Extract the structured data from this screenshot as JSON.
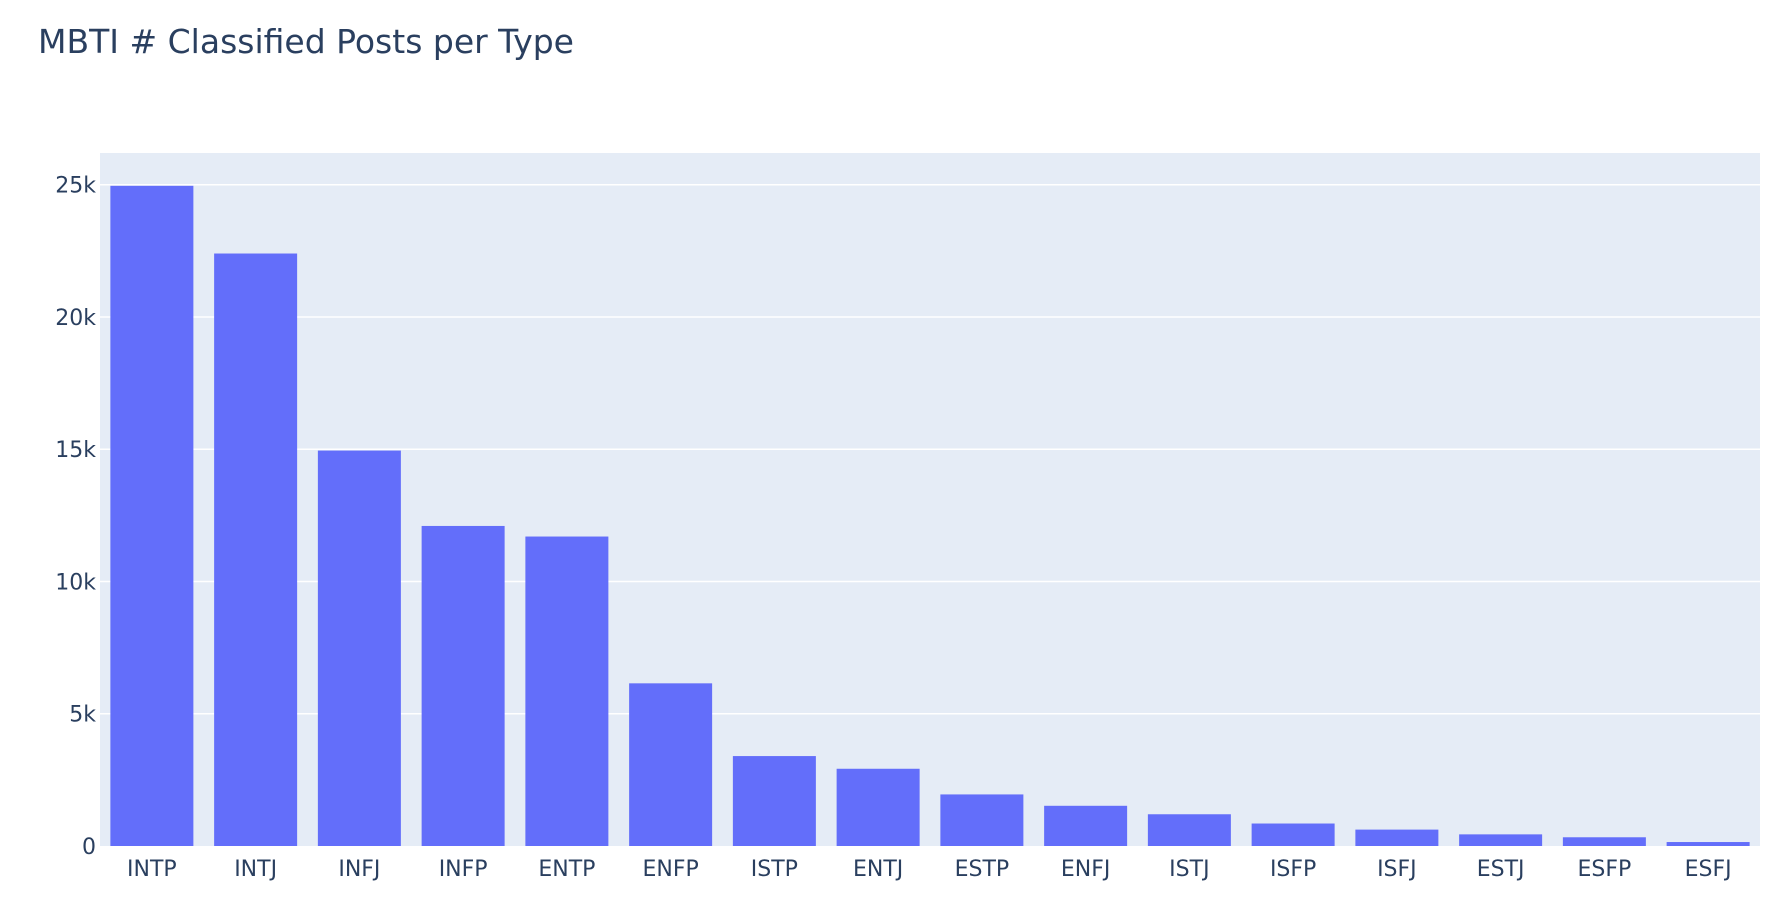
{
  "chart_data": {
    "type": "bar",
    "title": "MBTI # Classified Posts per Type",
    "xlabel": "",
    "ylabel": "",
    "categories": [
      "INTP",
      "INTJ",
      "INFJ",
      "INFP",
      "ENTP",
      "ENFP",
      "ISTP",
      "ENTJ",
      "ESTP",
      "ENFJ",
      "ISTJ",
      "ISFP",
      "ISFJ",
      "ESTJ",
      "ESFP",
      "ESFJ"
    ],
    "values": [
      24960,
      22400,
      14950,
      12100,
      11700,
      6150,
      3400,
      2920,
      1950,
      1520,
      1200,
      850,
      620,
      440,
      330,
      150
    ],
    "ylim": [
      0,
      26200
    ],
    "yticks": [
      0,
      5000,
      10000,
      15000,
      20000,
      25000
    ],
    "ytick_labels": [
      "0",
      "5k",
      "10k",
      "15k",
      "20k",
      "25k"
    ],
    "grid": true,
    "legend": "none",
    "colors": {
      "bar": "#636efa",
      "plot_bg": "#e5ecf6",
      "grid": "#ffffff",
      "text": "#2a3f5f"
    }
  }
}
